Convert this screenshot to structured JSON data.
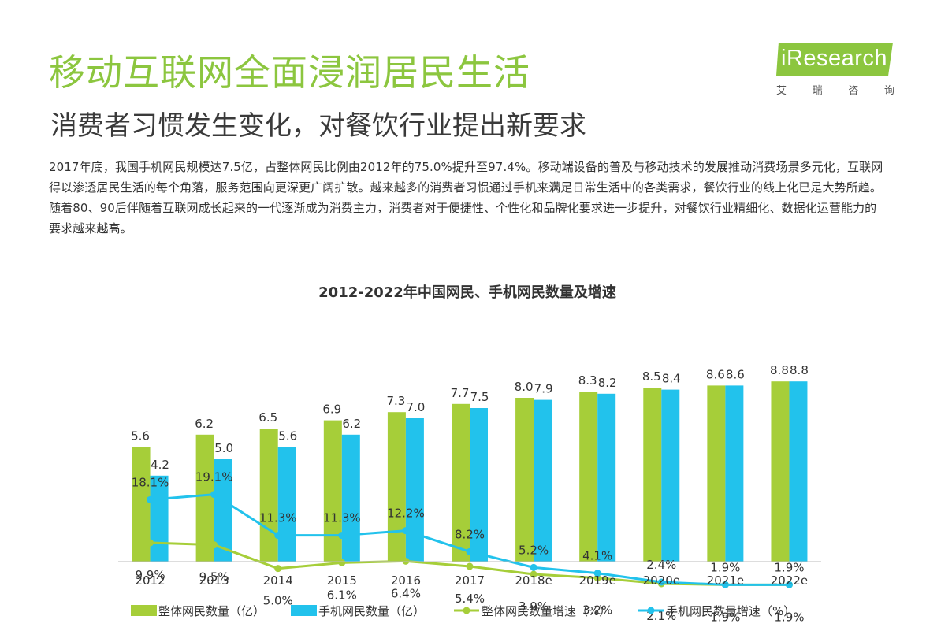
{
  "header": {
    "title": "移动互联网全面浸润居民生活",
    "subtitle": "消费者习惯发生变化，对餐饮行业提出新要求"
  },
  "logo": {
    "brand": "iResearch",
    "sub_chars": [
      "艾",
      "瑞",
      "咨",
      "询"
    ]
  },
  "intro": "2017年底，我国手机网民规模达7.5亿，占整体网民比例由2012年的75.0%提升至97.4%。移动端设备的普及与移动技术的发展推动消费场景多元化，互联网得以渗透居民生活的每个角落，服务范围向更深更广阔扩散。越来越多的消费者习惯通过手机来满足日常生活中的各类需求，餐饮行业的线上化已是大势所趋。随着80、90后伴随着互联网成长起来的一代逐渐成为消费主力，消费者对于便捷性、个性化和品牌化要求进一步提升，对餐饮行业精细化、数据化运营能力的要求越来越高。",
  "colors": {
    "green": "#a6ce39",
    "blue": "#22c2ec",
    "title_green": "#8cc63f"
  },
  "chart_data": {
    "type": "bar",
    "title": "2012-2022年中国网民、手机网民数量及增速",
    "categories": [
      "2012",
      "2013",
      "2014",
      "2015",
      "2016",
      "2017",
      "2018e",
      "2019e",
      "2020e",
      "2021e",
      "2022e"
    ],
    "series": [
      {
        "name": "整体网民数量（亿）",
        "kind": "bar",
        "color": "#a6ce39",
        "values": [
          5.6,
          6.2,
          6.5,
          6.9,
          7.3,
          7.7,
          8.0,
          8.3,
          8.5,
          8.6,
          8.8
        ],
        "labels": [
          "5.6",
          "6.2",
          "6.5",
          "6.9",
          "7.3",
          "7.7",
          "8.0",
          "8.3",
          "8.5",
          "8.6",
          "8.8"
        ]
      },
      {
        "name": "手机网民数量（亿）",
        "kind": "bar",
        "color": "#22c2ec",
        "values": [
          4.2,
          5.0,
          5.6,
          6.2,
          7.0,
          7.5,
          7.9,
          8.2,
          8.4,
          8.6,
          8.8
        ],
        "labels": [
          "4.2",
          "5.0",
          "5.6",
          "6.2",
          "7.0",
          "7.5",
          "7.9",
          "8.2",
          "8.4",
          "8.6",
          "8.8"
        ]
      },
      {
        "name": "整体网民数量增速（%）",
        "kind": "line",
        "color": "#a6ce39",
        "values": [
          9.9,
          9.5,
          5.0,
          6.1,
          6.4,
          5.4,
          3.9,
          3.2,
          2.1,
          1.9,
          1.9
        ],
        "labels": [
          "9.9%",
          "9.5%",
          "5.0%",
          "6.1%",
          "6.4%",
          "5.4%",
          "3.9%",
          "3.2%",
          "2.1%",
          "1.9%",
          "1.9%"
        ]
      },
      {
        "name": "手机网民数量增速（%）",
        "kind": "line",
        "color": "#22c2ec",
        "values": [
          18.1,
          19.1,
          11.3,
          11.3,
          12.2,
          8.2,
          5.2,
          4.1,
          2.4,
          1.9,
          1.9
        ],
        "labels": [
          "18.1%",
          "19.1%",
          "11.3%",
          "11.3%",
          "12.2%",
          "8.2%",
          "5.2%",
          "4.1%",
          "2.4%",
          "1.9%",
          "1.9%"
        ]
      }
    ],
    "bar_ylim": [
      0,
      14
    ],
    "line_ylim": [
      0,
      60
    ],
    "grid": false,
    "legend_position": "bottom"
  }
}
